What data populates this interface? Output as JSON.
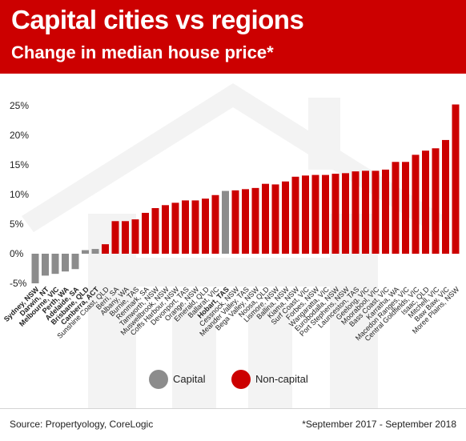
{
  "header": {
    "title": "Capital cities vs regions",
    "subtitle": "Change in median house price*"
  },
  "colors": {
    "header_bg": "#cc0000",
    "capital": "#8c8c8c",
    "non_capital": "#cc0000"
  },
  "legend": {
    "capital_label": "Capital",
    "non_capital_label": "Non-capital"
  },
  "footer": {
    "source": "Source: Propertyology, CoreLogic",
    "note": "*September 2017 - September 2018"
  },
  "chart_data": {
    "type": "bar",
    "ylim": [
      -5,
      25
    ],
    "yticks": [
      25,
      20,
      15,
      10,
      5,
      0,
      -5
    ],
    "ytick_labels": [
      "25%",
      "20%",
      "15%",
      "10%",
      "5%",
      "0%",
      "-5%"
    ],
    "grid": false,
    "legend_position": "bottom",
    "categories": [
      "Sydney, NSW",
      "Darwin, NT",
      "Melbourne, VIC",
      "Perth, WA",
      "Adelaide, SA",
      "Brisbane, QLD",
      "Canberra, ACT",
      "Sunshine Coast, QLD",
      "Berri, SA",
      "Albany, WA",
      "Burnie, TAS",
      "Renmark, SA",
      "Tamworth, NSW",
      "Muswellbrook, NSW",
      "Coffs Harbour, NSW",
      "Devonport, TAS",
      "Orange, NSW",
      "Emerald, QLD",
      "Ballarat, VIC",
      "Hobart, TAS",
      "Cessnock, NSW",
      "Meander Valley, TAS",
      "Bega Valley, NSW",
      "Noosa, QLD",
      "Lismore, NSW",
      "Ballina, NSW",
      "Kiama, NSW",
      "Surf Coast, VIC",
      "Forbes, NSW",
      "Wangaratta, VIC",
      "Eurobodalla, NSW",
      "Port Stephens, NSW",
      "Launceston, TAS",
      "Geelong, VIC",
      "Moorabool, VIC",
      "Bass Coast, VIC",
      "Karratha, WA",
      "Macedon Ranges, VIC",
      "Central Goldfields, VIC",
      "Isaac, QLD",
      "Mitchell, VIC",
      "Baw Baw, VIC",
      "Moree Plains, NSW"
    ],
    "values": [
      -5.0,
      -3.7,
      -3.4,
      -3.0,
      -2.6,
      0.6,
      0.8,
      1.6,
      5.5,
      5.5,
      5.8,
      6.9,
      7.7,
      8.2,
      8.6,
      9.0,
      9.0,
      9.3,
      9.9,
      10.6,
      10.7,
      10.9,
      11.1,
      11.8,
      11.7,
      12.2,
      13.0,
      13.2,
      13.3,
      13.3,
      13.5,
      13.6,
      13.9,
      14.0,
      14.0,
      14.2,
      15.5,
      15.5,
      16.7,
      17.4,
      17.8,
      19.2,
      25.2
    ],
    "is_capital": [
      true,
      true,
      true,
      true,
      true,
      true,
      true,
      false,
      false,
      false,
      false,
      false,
      false,
      false,
      false,
      false,
      false,
      false,
      false,
      true,
      false,
      false,
      false,
      false,
      false,
      false,
      false,
      false,
      false,
      false,
      false,
      false,
      false,
      false,
      false,
      false,
      false,
      false,
      false,
      false,
      false,
      false,
      false
    ]
  }
}
